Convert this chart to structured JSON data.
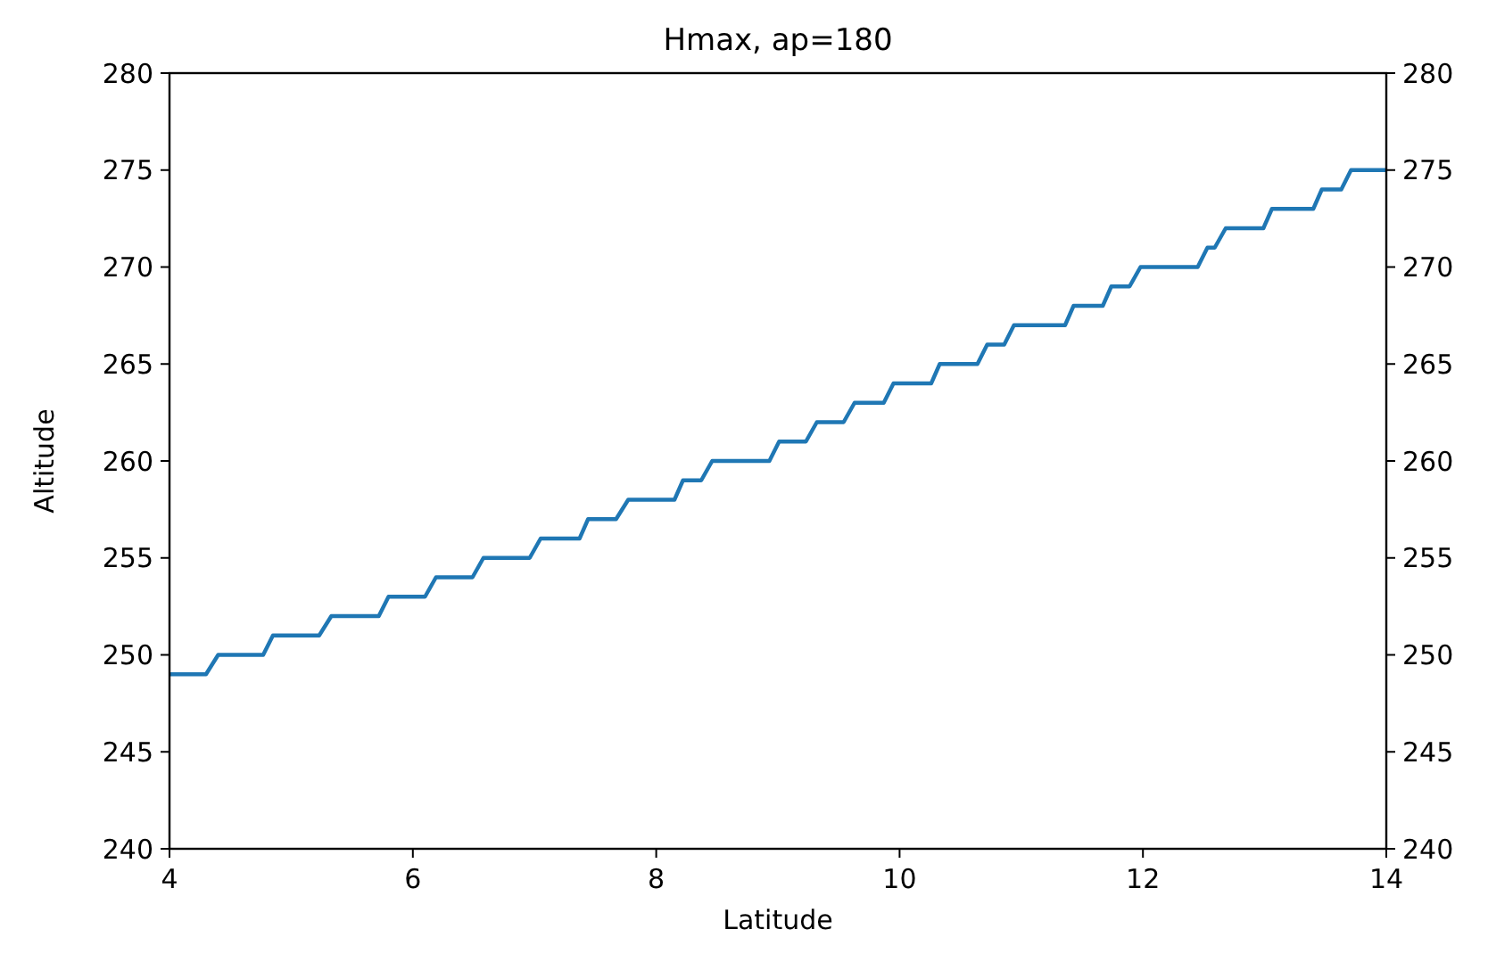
{
  "chart_data": {
    "type": "line",
    "title": "Hmax, ap=180",
    "xlabel": "Latitude",
    "ylabel": "Altitude",
    "xlim": [
      4,
      14
    ],
    "xticks": [
      4,
      6,
      8,
      10,
      12,
      14
    ],
    "ylim": [
      240,
      280
    ],
    "yticks": [
      240,
      245,
      250,
      255,
      260,
      265,
      270,
      275,
      280
    ],
    "y2lim": [
      240,
      280
    ],
    "y2ticks": [
      240,
      245,
      250,
      255,
      260,
      265,
      270,
      275,
      280
    ],
    "series": [
      {
        "color": "#1f77b4",
        "x": [
          4,
          4.3,
          4.4,
          4.77,
          4.85,
          5.23,
          5.33,
          5.72,
          5.8,
          6.1,
          6.19,
          6.49,
          6.58,
          6.96,
          7.05,
          7.37,
          7.44,
          7.67,
          7.77,
          8.15,
          8.22,
          8.37,
          8.46,
          8.93,
          9.01,
          9.23,
          9.32,
          9.54,
          9.63,
          9.87,
          9.95,
          10.26,
          10.33,
          10.64,
          10.72,
          10.86,
          10.94,
          11.36,
          11.43,
          11.67,
          11.74,
          11.89,
          11.98,
          12.45,
          12.53,
          12.59,
          12.68,
          12.99,
          13.06,
          13.4,
          13.47,
          13.63,
          13.71,
          14
        ],
        "values": [
          249,
          249,
          250,
          250,
          251,
          251,
          252,
          252,
          253,
          253,
          254,
          254,
          255,
          255,
          256,
          256,
          257,
          257,
          258,
          258,
          259,
          259,
          260,
          260,
          261,
          261,
          262,
          262,
          263,
          263,
          264,
          264,
          265,
          265,
          266,
          266,
          267,
          267,
          268,
          268,
          269,
          269,
          270,
          270,
          271,
          271,
          272,
          272,
          273,
          273,
          274,
          274,
          275,
          275
        ]
      }
    ],
    "grid": false,
    "marker": "none",
    "line_style": "solid"
  }
}
